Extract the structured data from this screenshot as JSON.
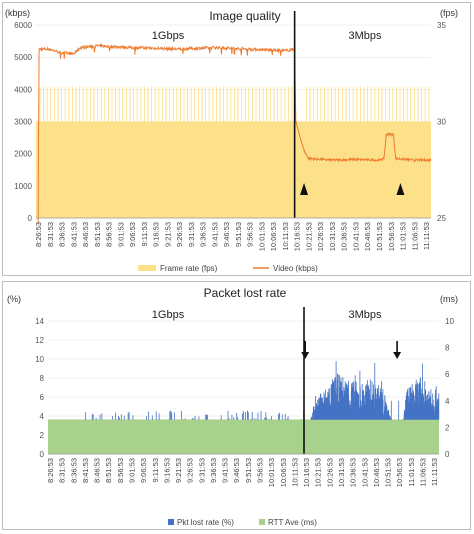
{
  "chart_data": [
    {
      "type": "bar+line",
      "title": "Image quality",
      "y_left_unit": "(kbps)",
      "y_right_unit": "(fps)",
      "y_left_ticks": [
        "0",
        "1000",
        "2000",
        "3000",
        "4000",
        "5000",
        "6000"
      ],
      "y_right_ticks": [
        "25",
        "30",
        "35"
      ],
      "ylim_left": [
        0,
        6000
      ],
      "ylim_right": [
        25,
        35
      ],
      "segments": [
        "1Gbps",
        "3Mbps"
      ],
      "split_time": "10:16:00",
      "x_ticks": [
        "8:26:53",
        "8:31:53",
        "8:36:53",
        "8:41:53",
        "8:46:53",
        "8:51:53",
        "8:56:53",
        "9:01:53",
        "9:06:53",
        "9:11:53",
        "9:16:53",
        "9:21:53",
        "9:26:53",
        "9:31:53",
        "9:36:53",
        "9:41:53",
        "9:46:53",
        "9:51:53",
        "9:56:53",
        "10:01:53",
        "10:06:53",
        "10:11:53",
        "10:16:53",
        "10:21:53",
        "10:26:53",
        "10:31:53",
        "10:36:53",
        "10:41:53",
        "10:46:53",
        "10:51:53",
        "10:56:53",
        "11:01:53",
        "11:06:53",
        "11:11:53"
      ],
      "legend": [
        "Frame rate (fps)",
        "Video (kbps)"
      ],
      "legend_position": "bottom",
      "series": [
        {
          "name": "Frame rate (fps)",
          "kind": "bar",
          "axis": "right",
          "color": "#fde08a",
          "base_value": 30,
          "spike_value": 31.8
        },
        {
          "name": "Video (kbps)",
          "kind": "line",
          "axis": "left",
          "color": "#ed7d31",
          "points": [
            [
              "8:26:53",
              0
            ],
            [
              "8:27:20",
              5250
            ],
            [
              "8:31:53",
              5250
            ],
            [
              "8:36:00",
              5150
            ],
            [
              "8:41:53",
              5100
            ],
            [
              "8:45:00",
              5300
            ],
            [
              "8:51:53",
              5350
            ],
            [
              "9:06:53",
              5300
            ],
            [
              "9:26:53",
              5250
            ],
            [
              "9:41:53",
              5300
            ],
            [
              "9:56:53",
              5250
            ],
            [
              "10:11:53",
              5200
            ],
            [
              "10:16:00",
              5250
            ],
            [
              "10:16:30",
              3000
            ],
            [
              "10:18:00",
              2600
            ],
            [
              "10:20:00",
              2100
            ],
            [
              "10:21:53",
              1850
            ],
            [
              "10:31:53",
              1800
            ],
            [
              "10:41:53",
              1820
            ],
            [
              "10:51:53",
              1800
            ],
            [
              "10:54:00",
              1850
            ],
            [
              "10:55:00",
              2600
            ],
            [
              "10:58:00",
              2600
            ],
            [
              "10:59:00",
              1850
            ],
            [
              "11:06:53",
              1800
            ],
            [
              "11:14:00",
              1800
            ]
          ]
        }
      ],
      "annotations": [
        {
          "type": "arrowhead-up",
          "at": "10:20:00"
        },
        {
          "type": "arrowhead-up",
          "at": "11:01:00"
        }
      ]
    },
    {
      "type": "area+line",
      "title": "Packet lost rate",
      "y_left_unit": "(%)",
      "y_right_unit": "(ms)",
      "y_left_ticks": [
        "0",
        "2",
        "4",
        "6",
        "8",
        "10",
        "12",
        "14"
      ],
      "y_right_ticks": [
        "0",
        "2",
        "4",
        "6",
        "8",
        "10"
      ],
      "ylim_left": [
        0,
        14
      ],
      "ylim_right": [
        0,
        10
      ],
      "segments": [
        "1Gbps",
        "3Mbps"
      ],
      "split_time": "10:16:00",
      "x_ticks": [
        "8:26:53",
        "8:31:53",
        "8:36:53",
        "8:41:53",
        "8:46:53",
        "8:51:53",
        "8:56:53",
        "9:01:53",
        "9:06:53",
        "9:11:53",
        "9:16:53",
        "9:21:53",
        "9:26:53",
        "9:31:53",
        "9:36:53",
        "9:41:53",
        "9:46:53",
        "9:51:53",
        "9:56:53",
        "10:01:53",
        "10:06:53",
        "10:11:53",
        "10:16:53",
        "10:21:53",
        "10:26:53",
        "10:31:53",
        "10:36:53",
        "10:41:53",
        "10:46:53",
        "10:51:53",
        "10:56:53",
        "11:01:53",
        "11:06:53",
        "11:11:53"
      ],
      "legend": [
        "Pkt lost rate (%)",
        "RTT Ave (ms)"
      ],
      "legend_position": "bottom",
      "series": [
        {
          "name": "Pkt lost rate (%)",
          "kind": "line",
          "axis": "left",
          "color": "#4472c4",
          "points": [
            [
              "10:16:00",
              0
            ],
            [
              "10:20:00",
              5
            ],
            [
              "10:25:00",
              7
            ],
            [
              "10:30:00",
              8.5
            ],
            [
              "10:35:00",
              8
            ],
            [
              "10:40:00",
              7.5
            ],
            [
              "10:45:00",
              8
            ],
            [
              "10:50:00",
              7
            ],
            [
              "10:55:00",
              2
            ],
            [
              "10:58:00",
              2
            ],
            [
              "11:00:00",
              7
            ],
            [
              "11:05:00",
              8
            ],
            [
              "11:10:00",
              7.5
            ],
            [
              "11:14:00",
              7
            ]
          ]
        },
        {
          "name": "RTT Ave (ms)",
          "kind": "area",
          "axis": "right",
          "color": "#a9d18e",
          "value": 2.6
        }
      ],
      "annotations": [
        {
          "type": "arrow-down",
          "at": "10:16:30"
        },
        {
          "type": "arrow-down",
          "at": "10:56:00"
        }
      ]
    }
  ]
}
